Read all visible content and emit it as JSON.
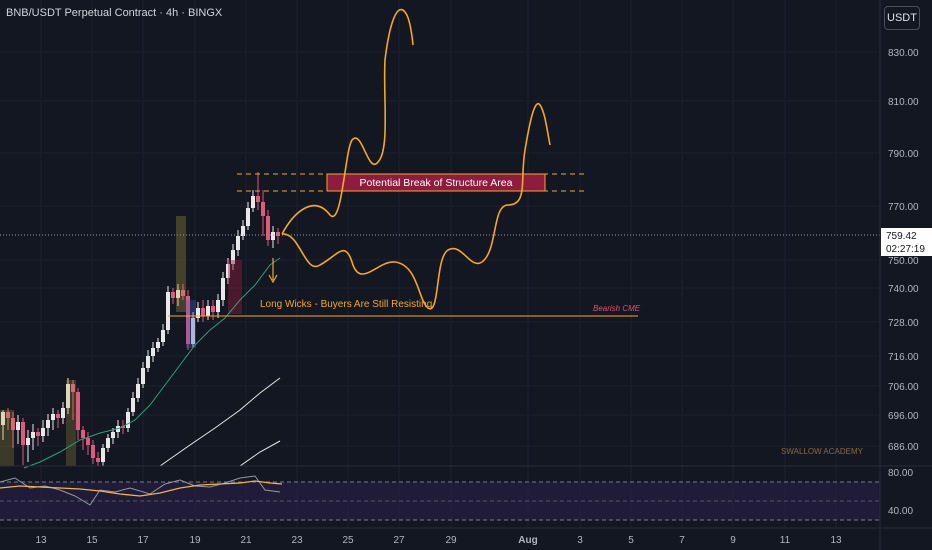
{
  "header": {
    "title": "BNB/USDT Perpetual Contract · 4h · BINGX",
    "currency_button": "USDT"
  },
  "price_axis": {
    "ticks": [
      "830.00",
      "810.00",
      "790.00",
      "770.00",
      "750.00",
      "740.00",
      "728.00",
      "716.00",
      "706.00",
      "696.00",
      "686.00"
    ],
    "current_price": "759.42",
    "countdown": "02:27:19"
  },
  "rsi_axis": {
    "ticks": [
      "80.00",
      "40.00"
    ]
  },
  "time_axis": {
    "ticks": [
      "13",
      "15",
      "17",
      "19",
      "21",
      "23",
      "25",
      "27",
      "29",
      "Aug",
      "3",
      "5",
      "7",
      "9",
      "11",
      "13"
    ]
  },
  "annotations": {
    "structure_box": "Potential Break of Structure Area",
    "long_wicks": "Long Wicks - Buyers Are Still Resisting",
    "bearish_cme": "Bearish CME",
    "watermark": "SWALLOW ACADEMY"
  },
  "colors": {
    "background": "#131722",
    "bull": "#e8e8e8",
    "bear": "#e05a7a",
    "annotation": "#f5a623",
    "structure_fill": "#8e1c3f",
    "ma_green": "#2e9e7a",
    "rsi_line": "#f0b53a"
  }
}
